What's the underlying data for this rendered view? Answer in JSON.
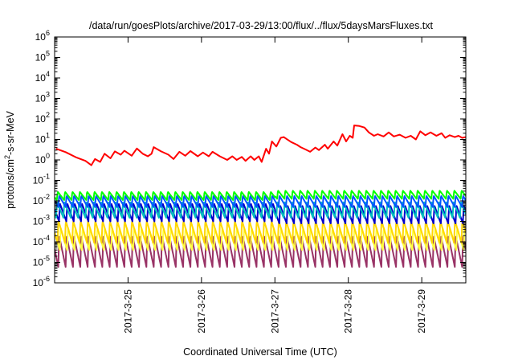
{
  "chart_data": {
    "type": "line",
    "title": "/data/run/goesPlots/archive/2017-03-29/13:00/flux/../flux/5daysMarsFluxes.txt",
    "xlabel": "Coordinated Universal Time (UTC)",
    "ylabel_main": "protons/cm",
    "ylabel_sup": "2",
    "ylabel_tail": "-s-sr-MeV",
    "yscale": "log",
    "ylim_exp": [
      -6,
      6
    ],
    "ytick_base": "10",
    "ytick_exps": [
      "-6",
      "-5",
      "-4",
      "-3",
      "-2",
      "-1",
      "0",
      "1",
      "2",
      "3",
      "4",
      "5",
      "6"
    ],
    "xlim_days": [
      24.0,
      29.6
    ],
    "xticks": [
      {
        "day": 25,
        "label": "2017-3-25"
      },
      {
        "day": 26,
        "label": "2017-3-26"
      },
      {
        "day": 27,
        "label": "2017-3-27"
      },
      {
        "day": 28,
        "label": "2017-3-28"
      },
      {
        "day": 29,
        "label": "2017-3-29"
      }
    ],
    "series": [
      {
        "color": "#ff0000",
        "pattern": "points",
        "points": [
          [
            24.02,
            3.5
          ],
          [
            24.15,
            2.4
          ],
          [
            24.3,
            1.3
          ],
          [
            24.42,
            0.9
          ],
          [
            24.5,
            0.55
          ],
          [
            24.55,
            1.1
          ],
          [
            24.62,
            0.8
          ],
          [
            24.68,
            2.0
          ],
          [
            24.76,
            1.2
          ],
          [
            24.82,
            2.6
          ],
          [
            24.9,
            1.8
          ],
          [
            24.95,
            2.8
          ],
          [
            25.05,
            1.6
          ],
          [
            25.12,
            3.6
          ],
          [
            25.2,
            2.0
          ],
          [
            25.27,
            1.5
          ],
          [
            25.32,
            2.0
          ],
          [
            25.35,
            4.2
          ],
          [
            25.45,
            2.6
          ],
          [
            25.55,
            1.8
          ],
          [
            25.62,
            1.1
          ],
          [
            25.7,
            2.5
          ],
          [
            25.78,
            1.6
          ],
          [
            25.85,
            2.7
          ],
          [
            25.95,
            1.5
          ],
          [
            26.02,
            2.3
          ],
          [
            26.1,
            1.5
          ],
          [
            26.15,
            2.5
          ],
          [
            26.25,
            1.5
          ],
          [
            26.35,
            1.0
          ],
          [
            26.42,
            1.5
          ],
          [
            26.48,
            1.0
          ],
          [
            26.55,
            1.4
          ],
          [
            26.6,
            0.9
          ],
          [
            26.67,
            1.5
          ],
          [
            26.72,
            1.0
          ],
          [
            26.78,
            1.5
          ],
          [
            26.82,
            0.8
          ],
          [
            26.88,
            3.5
          ],
          [
            26.92,
            2.0
          ],
          [
            26.96,
            8.0
          ],
          [
            27.02,
            4.5
          ],
          [
            27.08,
            12.0
          ],
          [
            27.12,
            13.0
          ],
          [
            27.22,
            7.5
          ],
          [
            27.3,
            5.5
          ],
          [
            27.35,
            4.2
          ],
          [
            27.42,
            3.2
          ],
          [
            27.48,
            2.5
          ],
          [
            27.55,
            4.0
          ],
          [
            27.6,
            3.0
          ],
          [
            27.68,
            5.5
          ],
          [
            27.72,
            3.5
          ],
          [
            27.8,
            8.0
          ],
          [
            27.85,
            5.0
          ],
          [
            27.92,
            18.0
          ],
          [
            27.97,
            8.0
          ],
          [
            28.02,
            15.0
          ],
          [
            28.06,
            12.0
          ],
          [
            28.08,
            48.0
          ],
          [
            28.15,
            45.0
          ],
          [
            28.22,
            38.0
          ],
          [
            28.28,
            22.0
          ],
          [
            28.35,
            15.0
          ],
          [
            28.4,
            18.0
          ],
          [
            28.48,
            14.0
          ],
          [
            28.55,
            22.0
          ],
          [
            28.62,
            14.0
          ],
          [
            28.7,
            17.0
          ],
          [
            28.78,
            12.0
          ],
          [
            28.85,
            15.0
          ],
          [
            28.92,
            10.0
          ],
          [
            28.98,
            25.0
          ],
          [
            29.05,
            16.0
          ],
          [
            29.12,
            22.0
          ],
          [
            29.2,
            15.0
          ],
          [
            29.27,
            20.0
          ],
          [
            29.32,
            12.0
          ],
          [
            29.38,
            16.0
          ],
          [
            29.45,
            13.0
          ],
          [
            29.5,
            15.0
          ],
          [
            29.55,
            12.0
          ],
          [
            29.6,
            13.0
          ]
        ]
      },
      {
        "color": "#00ff00",
        "pattern": "saw",
        "period": 0.1,
        "phase": 0.03,
        "hi": 0.028,
        "lo": 0.011,
        "lateBoost": 1.15
      },
      {
        "color": "#0055ff",
        "pattern": "saw",
        "period": 0.1,
        "phase": 0.05,
        "hi": 0.018,
        "lo": 0.005,
        "lateBoost": 1.0
      },
      {
        "color": "#00c0c0",
        "pattern": "saw",
        "period": 0.1,
        "phase": 0.02,
        "hi": 0.009,
        "lo": 0.0015,
        "lateBoost": 1.0
      },
      {
        "color": "#0000cc",
        "pattern": "saw",
        "period": 0.1,
        "phase": 0.06,
        "hi": 0.0075,
        "lo": 0.001,
        "lateBoost": 0.8
      },
      {
        "color": "#ffd700",
        "pattern": "saw",
        "period": 0.1,
        "phase": 0.04,
        "hi": 0.0011,
        "lo": 9e-05,
        "lateBoost": 1.0
      },
      {
        "color": "#ffff40",
        "pattern": "saw",
        "period": 0.1,
        "phase": 0.07,
        "hi": 0.0005,
        "lo": 4e-05,
        "lateBoost": 1.0
      },
      {
        "color": "#993366",
        "pattern": "saw",
        "period": 0.1,
        "phase": 0.05,
        "hi": 0.0002,
        "lo": 6e-06,
        "lateBoost": 1.0
      }
    ]
  }
}
